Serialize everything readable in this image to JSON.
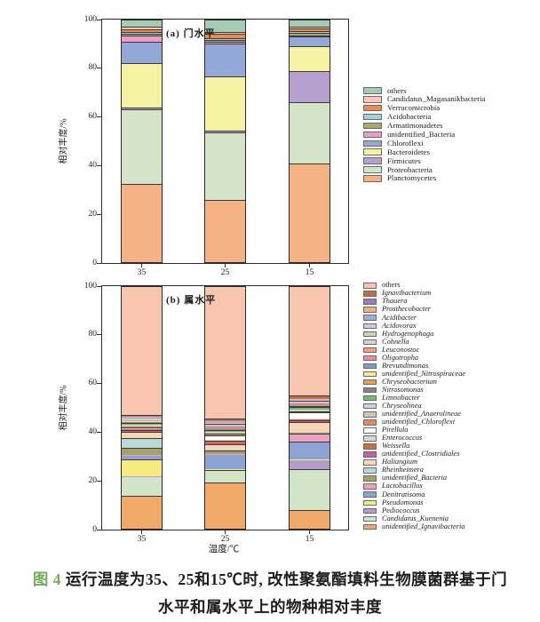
{
  "figure": {
    "caption": {
      "label": "图 4",
      "label_color": "#73ad5a",
      "line1": "运行温度为35、25和15℃时, 改性聚氨酯填料生物膜菌群基于门",
      "line2": "水平和属水平上的物种相对丰度"
    }
  },
  "chart_data": [
    {
      "id": "a",
      "type": "bar",
      "stacked": true,
      "panel_label": "(a) 门水平",
      "ylabel": "相对丰度/%",
      "xlabel": "",
      "categories": [
        "35",
        "25",
        "15"
      ],
      "ylim": [
        0,
        100
      ],
      "yticks": [
        0,
        20,
        40,
        60,
        80,
        100
      ],
      "legend_position": "right",
      "series_order": "bottom-to-top",
      "series": [
        {
          "name": "Planctomycetes",
          "color": "#f5b285",
          "values": [
            32.5,
            26.0,
            41.0
          ]
        },
        {
          "name": "Proteobacteria",
          "color": "#d5e4c8",
          "values": [
            30.5,
            27.5,
            25.0
          ]
        },
        {
          "name": "Firmicutes",
          "color": "#b6a1ce",
          "values": [
            0.8,
            1.0,
            13.0
          ]
        },
        {
          "name": "Bacteroidetes",
          "color": "#f6f2a3",
          "values": [
            18.5,
            22.0,
            10.0
          ]
        },
        {
          "name": "Chloroflexi",
          "color": "#93a8d6",
          "values": [
            8.5,
            13.5,
            4.0
          ]
        },
        {
          "name": "unidentified_Bacteria",
          "color": "#ec9fc5",
          "values": [
            2.5,
            0.8,
            0.6
          ]
        },
        {
          "name": "Armatimonadetes",
          "color": "#a9a873",
          "values": [
            0.8,
            0.8,
            0.9
          ]
        },
        {
          "name": "Acidobacteria",
          "color": "#a6ced6",
          "values": [
            0.8,
            0.8,
            0.6
          ]
        },
        {
          "name": "Verrucomicrobia",
          "color": "#ee8a4c",
          "values": [
            1.2,
            1.8,
            1.2
          ]
        },
        {
          "name": "Candidatus_Magasanikbacteria",
          "color": "#f8c8bc",
          "values": [
            0.9,
            0.8,
            0.7
          ]
        },
        {
          "name": "others",
          "color": "#a6cbb4",
          "values": [
            3.0,
            5.0,
            3.0
          ]
        }
      ]
    },
    {
      "id": "b",
      "type": "bar",
      "stacked": true,
      "panel_label": "(b) 属水平",
      "ylabel": "相对丰度/%",
      "xlabel": "温度/℃",
      "categories": [
        "35",
        "25",
        "15"
      ],
      "ylim": [
        0,
        100
      ],
      "yticks": [
        0,
        20,
        40,
        60,
        80,
        100
      ],
      "legend_position": "right",
      "series_order": "bottom-to-top",
      "series": [
        {
          "name": "unidentified_Ignavibacteria",
          "color": "#f1a969",
          "italic": true,
          "values": [
            14.0,
            19.5,
            8.0
          ]
        },
        {
          "name": "Candidatus_Kuenenia",
          "color": "#d3e5c9",
          "italic": true,
          "values": [
            7.9,
            5.0,
            17.0
          ]
        },
        {
          "name": "Pediococcus",
          "color": "#b59cc9",
          "italic": true,
          "values": [
            0.1,
            0.3,
            3.7
          ]
        },
        {
          "name": "Pseudomonas",
          "color": "#f6ea80",
          "italic": true,
          "values": [
            7.0,
            0.2,
            0.2
          ]
        },
        {
          "name": "Denitratisoma",
          "color": "#8da4d2",
          "italic": true,
          "values": [
            1.5,
            6.0,
            7.3
          ]
        },
        {
          "name": "Lactobacillus",
          "color": "#eca1c1",
          "italic": true,
          "values": [
            0.2,
            0.2,
            3.1
          ]
        },
        {
          "name": "unidentified_Bacteria",
          "color": "#a4a16b",
          "italic": true,
          "values": [
            3.0,
            1.2,
            0.4
          ]
        },
        {
          "name": "Rheinheimera",
          "color": "#b9d9d9",
          "italic": true,
          "values": [
            4.0,
            0.3,
            0.3
          ]
        },
        {
          "name": "Haliangium",
          "color": "#f8d6b6",
          "italic": true,
          "values": [
            2.3,
            2.4,
            4.2
          ]
        },
        {
          "name": "unidentified_Clostridiales",
          "color": "#c360a6",
          "italic": true,
          "values": [
            1.0,
            0.3,
            0.6
          ]
        },
        {
          "name": "Weissella",
          "color": "#cf6b40",
          "italic": true,
          "values": [
            0.3,
            1.2,
            0.4
          ]
        },
        {
          "name": "Enterococcus",
          "color": "#dad5cd",
          "italic": true,
          "values": [
            0.3,
            0.3,
            0.4
          ]
        },
        {
          "name": "Pirellula",
          "color": "#ffffff",
          "italic": true,
          "values": [
            0.5,
            1.9,
            2.5
          ]
        },
        {
          "name": "unidentified_Chloroflexi",
          "color": "#dd8c6e",
          "italic": true,
          "values": [
            0.3,
            0.5,
            0.5
          ]
        },
        {
          "name": "unidentified_Anaerolineae",
          "color": "#d0c5b5",
          "italic": true,
          "values": [
            0.3,
            0.4,
            0.4
          ]
        },
        {
          "name": "Chryseolinea",
          "color": "#c6d8dc",
          "italic": true,
          "values": [
            0.3,
            0.4,
            0.4
          ]
        },
        {
          "name": "Limnobacter",
          "color": "#6cbe70",
          "italic": true,
          "values": [
            0.8,
            0.7,
            0.9
          ]
        },
        {
          "name": "Nitrosomonas",
          "color": "#8e8089",
          "italic": true,
          "values": [
            0.3,
            0.3,
            0.5
          ]
        },
        {
          "name": "Chryseobacterium",
          "color": "#e99b58",
          "italic": true,
          "values": [
            0.3,
            0.4,
            0.3
          ]
        },
        {
          "name": "unidentified_Nitrospiraceae",
          "color": "#f6ee8c",
          "italic": true,
          "values": [
            0.2,
            0.3,
            0.2
          ]
        },
        {
          "name": "Brevundimonas",
          "color": "#7d9dd2",
          "italic": true,
          "values": [
            0.2,
            0.3,
            0.3
          ]
        },
        {
          "name": "Oligotropha",
          "color": "#ee8ab2",
          "italic": true,
          "values": [
            0.2,
            0.2,
            0.2
          ]
        },
        {
          "name": "Leuconostoc",
          "color": "#f2a181",
          "italic": true,
          "values": [
            0.2,
            0.4,
            0.3
          ]
        },
        {
          "name": "Cohnella",
          "color": "#d6d6ce",
          "italic": true,
          "values": [
            0.2,
            0.3,
            0.3
          ]
        },
        {
          "name": "Hydrogenophaga",
          "color": "#c4daaa",
          "italic": true,
          "values": [
            0.3,
            0.6,
            0.5
          ]
        },
        {
          "name": "Acidovorax",
          "color": "#d6c6e2",
          "italic": true,
          "values": [
            0.2,
            0.3,
            0.3
          ]
        },
        {
          "name": "Acidibacter",
          "color": "#90b4d6",
          "italic": true,
          "values": [
            0.2,
            0.3,
            0.3
          ]
        },
        {
          "name": "Prosthecobacter",
          "color": "#f0b083",
          "italic": true,
          "values": [
            0.2,
            0.3,
            0.3
          ]
        },
        {
          "name": "Thauera",
          "color": "#9c7bb5",
          "italic": true,
          "values": [
            0.3,
            0.3,
            0.4
          ]
        },
        {
          "name": "Ignavibacterium",
          "color": "#c06f3e",
          "italic": true,
          "values": [
            0.6,
            1.0,
            0.8
          ]
        },
        {
          "name": "others",
          "color": "#f8c6ae",
          "italic": false,
          "values": [
            52.8,
            54.2,
            45.0
          ]
        }
      ]
    }
  ]
}
